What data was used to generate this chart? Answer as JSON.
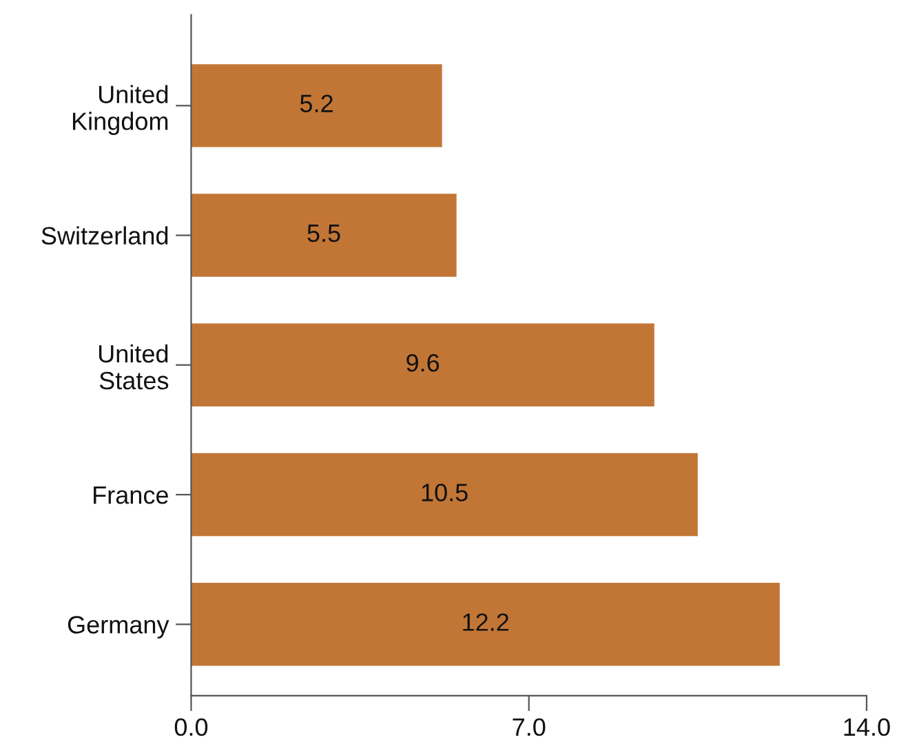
{
  "chart_data": {
    "type": "bar",
    "orientation": "horizontal",
    "categories": [
      "United Kingdom",
      "Switzerland",
      "United States",
      "France",
      "Germany"
    ],
    "values": [
      5.2,
      5.5,
      9.6,
      10.5,
      12.2
    ],
    "color": "#c27636",
    "xlim": [
      0,
      14
    ],
    "xticks": [
      {
        "value": 0,
        "label": "0.0"
      },
      {
        "value": 7,
        "label": "7.0"
      },
      {
        "value": 14,
        "label": "14.0"
      }
    ],
    "data_labels": true,
    "grid": false,
    "legend": false
  }
}
